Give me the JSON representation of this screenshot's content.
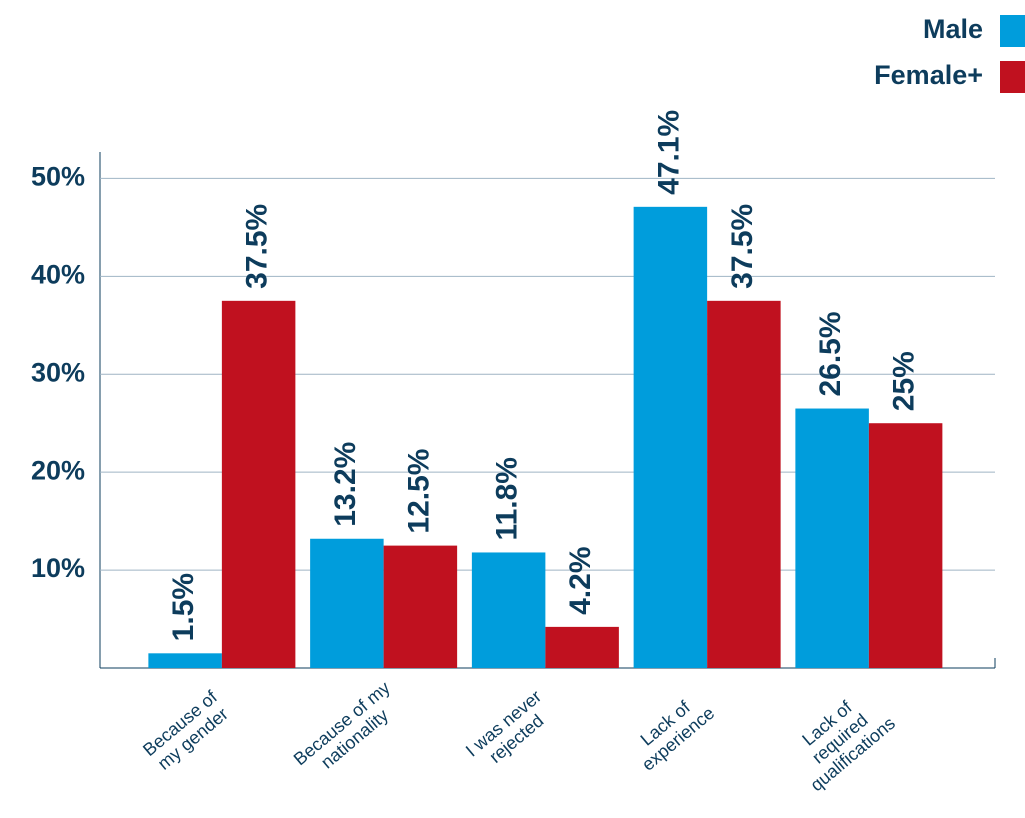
{
  "chart_data": {
    "type": "bar",
    "categories": [
      [
        "Because of",
        "my gender"
      ],
      [
        "Because of my",
        "nationality"
      ],
      [
        "I was never",
        "rejected"
      ],
      [
        "Lack of",
        "experience"
      ],
      [
        "Lack of",
        "required",
        "qualifications"
      ]
    ],
    "series": [
      {
        "name": "Male",
        "color": "#009ddc",
        "values": [
          1.5,
          13.2,
          11.8,
          47.1,
          26.5
        ],
        "value_labels": [
          "1.5%",
          "13.2%",
          "11.8%",
          "47.1%",
          "26.5%"
        ]
      },
      {
        "name": "Female+",
        "color": "#c0111f",
        "values": [
          37.5,
          12.5,
          4.2,
          37.5,
          25
        ],
        "value_labels": [
          "37.5%",
          "12.5%",
          "4.2%",
          "37.5%",
          "25%"
        ]
      }
    ],
    "ylim": [
      0,
      52.7
    ],
    "yticks": [
      {
        "value": 10,
        "label": "10%"
      },
      {
        "value": 20,
        "label": "20%"
      },
      {
        "value": 30,
        "label": "30%"
      },
      {
        "value": 40,
        "label": "40%"
      },
      {
        "value": 50,
        "label": "50%"
      }
    ],
    "grid": true,
    "legend": "top-right"
  }
}
